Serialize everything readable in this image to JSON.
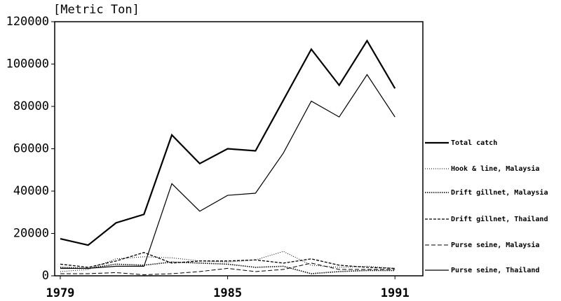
{
  "chart_data": {
    "type": "line",
    "y_label": "[Metric Ton]",
    "x": [
      1979,
      1980,
      1981,
      1982,
      1983,
      1984,
      1985,
      1986,
      1987,
      1988,
      1989,
      1990,
      1991
    ],
    "xlim": [
      1978.8,
      1992
    ],
    "xticks": [
      1979,
      1985,
      1991
    ],
    "ylim": [
      0,
      120000
    ],
    "yticks": [
      0,
      20000,
      40000,
      60000,
      80000,
      100000,
      120000
    ],
    "series": [
      {
        "name": "Total catch",
        "color": "#000000",
        "width": 2.2,
        "dash": "none",
        "values": [
          17500,
          14500,
          25000,
          29000,
          66500,
          53000,
          60000,
          59000,
          83000,
          107000,
          90000,
          111000,
          88500
        ]
      },
      {
        "name": "Hook & line, Malaysia",
        "color": "#000000",
        "width": 1,
        "dash": "1 2",
        "values": [
          2000,
          3000,
          8000,
          9000,
          8500,
          7000,
          6500,
          7500,
          11500,
          5000,
          4000,
          4500,
          3500
        ]
      },
      {
        "name": "Drift gillnet, Malaysia",
        "color": "#000000",
        "width": 1.6,
        "dash": "1.5 1.5",
        "values": [
          4000,
          3500,
          5500,
          5000,
          6500,
          6000,
          5500,
          4000,
          4500,
          1000,
          2000,
          2500,
          2500
        ]
      },
      {
        "name": "Drift gillnet, Thailand",
        "color": "#000000",
        "width": 1.3,
        "dash": "4 2",
        "values": [
          5500,
          4000,
          7000,
          11000,
          6000,
          7000,
          7000,
          7500,
          6000,
          8000,
          5000,
          4000,
          3500
        ]
      },
      {
        "name": "Purse seine, Malaysia",
        "color": "#000000",
        "width": 1,
        "dash": "6 3",
        "values": [
          1000,
          1000,
          1500,
          500,
          1000,
          2000,
          3500,
          2000,
          3000,
          6000,
          3000,
          3000,
          3000
        ]
      },
      {
        "name": "Purse seine, Thailand",
        "color": "#000000",
        "width": 1.2,
        "dash": "none",
        "values": [
          3500,
          3500,
          4500,
          4500,
          43500,
          30500,
          38000,
          39000,
          58000,
          82500,
          75000,
          95000,
          75000
        ]
      }
    ]
  }
}
